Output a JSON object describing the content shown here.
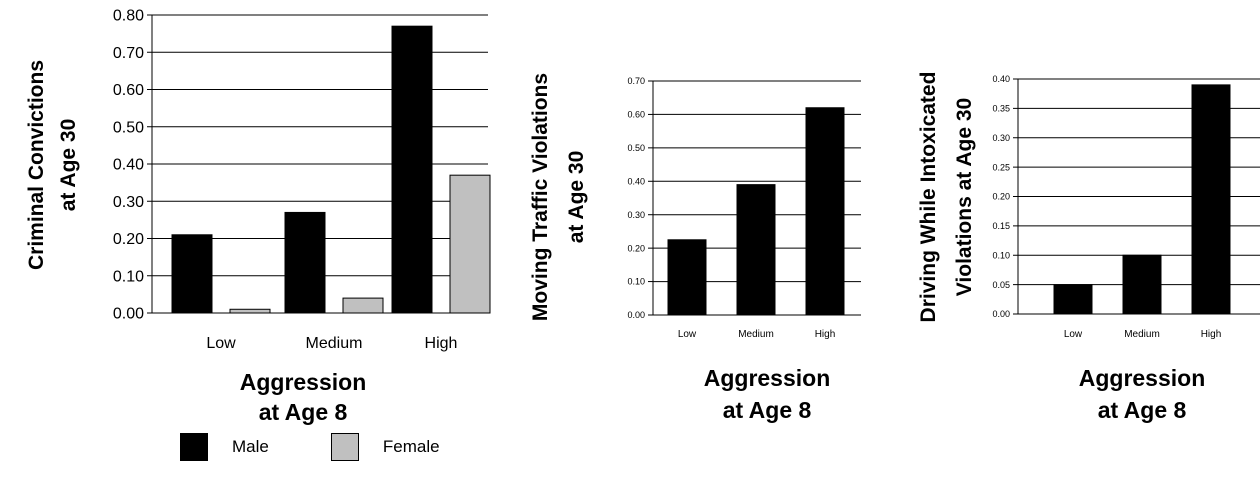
{
  "colors": {
    "male": "#000000",
    "female": "#c0c0c0",
    "grid": "#000000"
  },
  "legend": [
    {
      "name": "Male",
      "color": "#000000"
    },
    {
      "name": "Female",
      "color": "#c0c0c0"
    }
  ],
  "chart_data": [
    {
      "type": "bar",
      "title": "",
      "xlabel": [
        "Aggression",
        "at Age 8"
      ],
      "ylabel": [
        "Criminal Convictions",
        "at Age 30"
      ],
      "categories": [
        "Low",
        "Medium",
        "High"
      ],
      "series": [
        {
          "name": "Male",
          "values": [
            0.21,
            0.27,
            0.77
          ]
        },
        {
          "name": "Female",
          "values": [
            0.01,
            0.04,
            0.37
          ]
        }
      ],
      "ylim": [
        0,
        0.8
      ],
      "yticks": [
        "0.00",
        "0.10",
        "0.20",
        "0.30",
        "0.40",
        "0.50",
        "0.60",
        "0.70",
        "0.80"
      ],
      "grid": true,
      "legend": "bottom"
    },
    {
      "type": "bar",
      "title": "",
      "xlabel": [
        "Aggression",
        "at Age 8"
      ],
      "ylabel": [
        "Moving Traffic Violations",
        "at Age 30"
      ],
      "categories": [
        "Low",
        "Medium",
        "High"
      ],
      "series": [
        {
          "values": [
            0.225,
            0.39,
            0.62
          ]
        }
      ],
      "ylim": [
        0,
        0.7
      ],
      "yticks": [
        "0.00",
        "0.10",
        "0.20",
        "0.30",
        "0.40",
        "0.50",
        "0.60",
        "0.70"
      ],
      "grid": true
    },
    {
      "type": "bar",
      "title": "",
      "xlabel": [
        "Aggression",
        "at Age 8"
      ],
      "ylabel": [
        "Driving While Intoxicated",
        "Violations at Age 30"
      ],
      "categories": [
        "Low",
        "Medium",
        "High"
      ],
      "series": [
        {
          "values": [
            0.05,
            0.1,
            0.39
          ]
        }
      ],
      "ylim": [
        0,
        0.4
      ],
      "yticks": [
        "0.00",
        "0.05",
        "0.10",
        "0.15",
        "0.20",
        "0.25",
        "0.30",
        "0.35",
        "0.40"
      ],
      "grid": true
    }
  ]
}
